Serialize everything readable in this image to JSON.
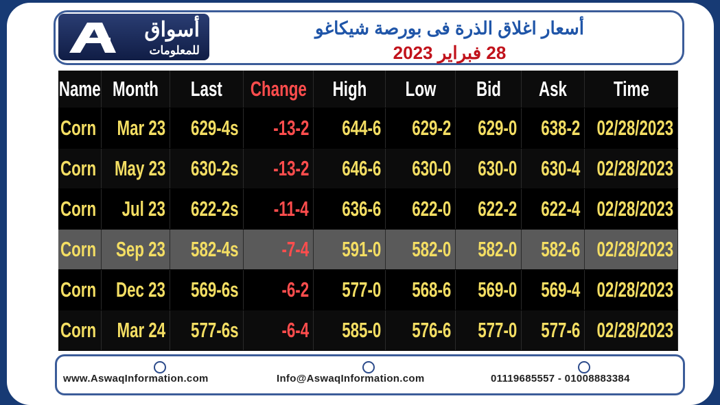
{
  "header": {
    "logo_title": "أسواق",
    "logo_subtitle": "للمعلومات",
    "title": "أسعار اغلاق الذرة فى بورصة شيكاغو",
    "date": "28 فبراير 2023"
  },
  "table": {
    "columns": [
      "Name",
      "Month",
      "Last",
      "Change",
      "High",
      "Low",
      "Bid",
      "Ask",
      "Time"
    ],
    "rows": [
      [
        "Corn",
        "Mar 23",
        "629-4s",
        "-13-2",
        "644-6",
        "629-2",
        "629-0",
        "638-2",
        "02/28/2023"
      ],
      [
        "Corn",
        "May 23",
        "630-2s",
        "-13-2",
        "646-6",
        "630-0",
        "630-0",
        "630-4",
        "02/28/2023"
      ],
      [
        "Corn",
        "Jul 23",
        "622-2s",
        "-11-4",
        "636-6",
        "622-0",
        "622-2",
        "622-4",
        "02/28/2023"
      ],
      [
        "Corn",
        "Sep 23",
        "582-4s",
        "-7-4",
        "591-0",
        "582-0",
        "582-0",
        "582-6",
        "02/28/2023"
      ],
      [
        "Corn",
        "Dec 23",
        "569-6s",
        "-6-2",
        "577-0",
        "568-6",
        "569-0",
        "569-4",
        "02/28/2023"
      ],
      [
        "Corn",
        "Mar 24",
        "577-6s",
        "-6-4",
        "585-0",
        "576-6",
        "577-0",
        "577-6",
        "02/28/2023"
      ]
    ]
  },
  "footer": {
    "website": "www.AswaqInformation.com",
    "email": "Info@AswaqInformation.com",
    "phone": "01119685557 - 01008883384"
  }
}
